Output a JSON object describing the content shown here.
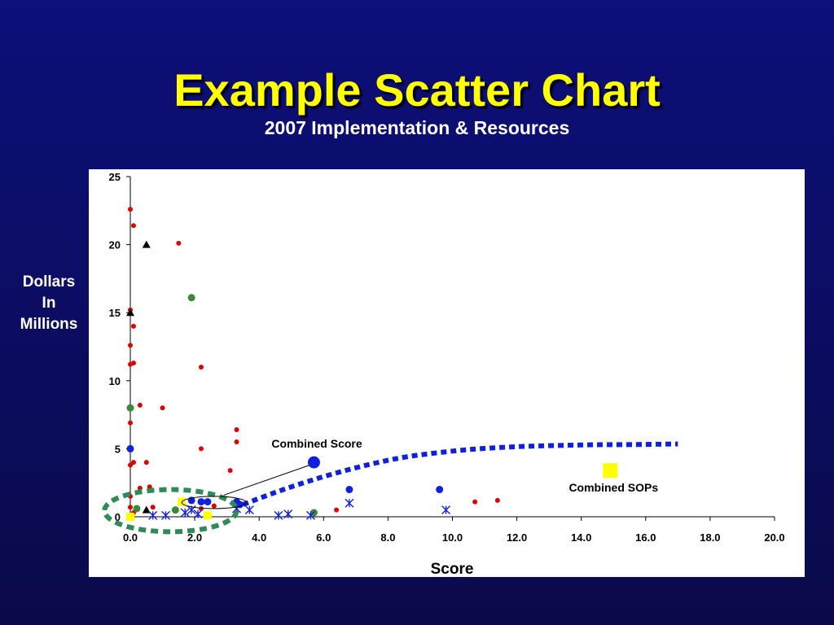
{
  "slide": {
    "title": "Example Scatter Chart",
    "subtitle": "2007 Implementation & Resources"
  },
  "colors": {
    "background": "#0d0f7a",
    "title": "#ffff00",
    "red": "#e00000",
    "blue": "#1020e0",
    "green": "#3a8a3a",
    "yellow": "#ffff00",
    "black": "#000000",
    "ellipse_green": "#2e8b57"
  },
  "chart_data": {
    "type": "scatter",
    "xlabel": "Score",
    "ylabel_lines": [
      "Dollars",
      "In",
      "Millions"
    ],
    "xlim": [
      0,
      20
    ],
    "ylim": [
      0,
      25
    ],
    "xticks": [
      "0.0",
      "2.0",
      "4.0",
      "6.0",
      "8.0",
      "10.0",
      "12.0",
      "14.0",
      "16.0",
      "18.0",
      "20.0"
    ],
    "yticks": [
      "0",
      "5",
      "10",
      "15",
      "20",
      "25"
    ],
    "grid": false,
    "series": [
      {
        "marker": "circle-small",
        "color": "red",
        "points": [
          [
            0,
            22.6
          ],
          [
            0.1,
            21.4
          ],
          [
            1.5,
            20.1
          ],
          [
            0,
            15.2
          ],
          [
            0.1,
            14
          ],
          [
            0,
            12.6
          ],
          [
            0,
            11.2
          ],
          [
            0.1,
            11.3
          ],
          [
            2.2,
            11
          ],
          [
            0.3,
            8.2
          ],
          [
            1,
            8
          ],
          [
            0,
            6.9
          ],
          [
            3.3,
            6.4
          ],
          [
            3.3,
            5.5
          ],
          [
            2.2,
            5
          ],
          [
            0.5,
            4
          ],
          [
            0,
            3.8
          ],
          [
            3.1,
            3.4
          ],
          [
            0.6,
            2.2
          ],
          [
            0.3,
            2.1
          ],
          [
            0,
            1.5
          ],
          [
            0.7,
            0.7
          ],
          [
            0,
            0.7
          ],
          [
            2.6,
            0.8
          ],
          [
            2.2,
            0.6
          ],
          [
            6.4,
            0.5
          ],
          [
            10.7,
            1.1
          ],
          [
            11.4,
            1.2
          ],
          [
            0.1,
            0.3
          ],
          [
            0.1,
            4
          ]
        ]
      },
      {
        "marker": "circle",
        "color": "blue",
        "points": [
          [
            0,
            5
          ],
          [
            1.9,
            1.2
          ],
          [
            2.2,
            1.1
          ],
          [
            2.4,
            1.1
          ],
          [
            3.3,
            1.1
          ],
          [
            3.4,
            0.9
          ],
          [
            6.8,
            2
          ],
          [
            9.6,
            2
          ]
        ]
      },
      {
        "marker": "circle",
        "color": "green",
        "points": [
          [
            1.9,
            16.1
          ],
          [
            0,
            8
          ],
          [
            0.2,
            0.6
          ],
          [
            1.4,
            0.5
          ],
          [
            5.7,
            0.3
          ]
        ]
      },
      {
        "marker": "triangle",
        "color": "black",
        "points": [
          [
            0.5,
            20
          ],
          [
            0,
            15
          ],
          [
            0.5,
            0.5
          ],
          [
            0,
            0
          ]
        ]
      },
      {
        "marker": "square",
        "color": "yellow",
        "points": [
          [
            1.6,
            1.1
          ],
          [
            2.4,
            0.1
          ],
          [
            0,
            0
          ]
        ]
      },
      {
        "marker": "star",
        "color": "blue",
        "points": [
          [
            0.7,
            0.1
          ],
          [
            1.1,
            0.1
          ],
          [
            1.7,
            0.3
          ],
          [
            1.9,
            0.5
          ],
          [
            2.1,
            0.2
          ],
          [
            3.3,
            0.6
          ],
          [
            3.7,
            0.5
          ],
          [
            4.6,
            0.1
          ],
          [
            4.9,
            0.2
          ],
          [
            5.6,
            0.1
          ],
          [
            6.8,
            1
          ],
          [
            9.8,
            0.5
          ]
        ]
      }
    ],
    "highlights": {
      "combined_score": {
        "label": "Combined Score",
        "point": [
          5.7,
          4
        ]
      },
      "combined_sops": {
        "label": "Combined SOPs",
        "point": [
          14.9,
          3.4
        ]
      }
    },
    "trend_curve": [
      [
        3.5,
        0.9
      ],
      [
        4.5,
        1.8
      ],
      [
        5.5,
        2.6
      ],
      [
        6.5,
        3.3
      ],
      [
        7.5,
        3.9
      ],
      [
        8.5,
        4.4
      ],
      [
        9.5,
        4.7
      ],
      [
        10.5,
        4.95
      ],
      [
        11.5,
        5.1
      ],
      [
        12.5,
        5.2
      ],
      [
        13.5,
        5.25
      ],
      [
        14.5,
        5.3
      ],
      [
        15.5,
        5.3
      ],
      [
        17,
        5.35
      ]
    ],
    "small_ellipse_range": {
      "x": [
        1.6,
        3.6
      ],
      "y": [
        0.6,
        1.5
      ]
    },
    "large_ellipse_range": {
      "x": [
        -0.8,
        3.3
      ],
      "y": [
        -1.1,
        2.0
      ]
    }
  }
}
